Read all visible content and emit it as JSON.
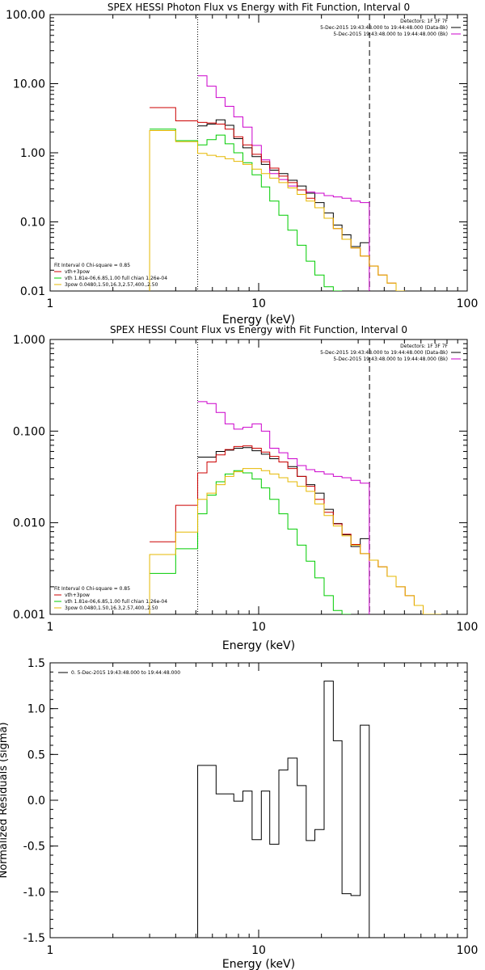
{
  "chart_data": [
    {
      "type": "line",
      "title": "SPEX HESSI Photon Flux vs Energy with Fit Function, Interval 0",
      "xlabel": "Energy (keV)",
      "ylabel": "",
      "xscale": "log",
      "yscale": "log",
      "xlim": [
        1,
        100
      ],
      "ylim": [
        0.01,
        100
      ],
      "x_ticks": [
        1,
        10,
        100
      ],
      "x_tick_labels": [
        "1",
        "10",
        "100"
      ],
      "y_ticks": [
        0.01,
        0.1,
        1,
        10,
        100
      ],
      "y_tick_labels": [
        "0.01",
        "0.10",
        "1.00",
        "10.00",
        "100.00"
      ],
      "vlines": [
        {
          "x": 5.1,
          "style": "dotted"
        },
        {
          "x": 34,
          "style": "dashed"
        }
      ],
      "info_lines": [
        "Detectors: 1F 3F 7F",
        "5-Dec-2015 19:43:48.000 to 19:44:48.000 (Data-Bk)",
        "5-Dec-2015 19:43:48.000 to 19:44:48.000 (Bk)"
      ],
      "info_colors": [
        "#000000",
        "#000000",
        "#cc00cc"
      ],
      "legend_lines": [
        "Fit Interval 0   Chi-square = 0.85",
        "vth+3pow",
        "vth 1.81e-06,6.85,1.00  full chian 1.26e-04",
        "3pow 0.0480,1.50,16.3,2.57,400.,2.50"
      ],
      "legend_colors": [
        "#000000",
        "#cc0000",
        "#00cc00",
        "#e6b800"
      ],
      "legend_placement": "bottom-left",
      "series": [
        {
          "key": "data",
          "color": "#000000",
          "edges": [
            5.1,
            5.65,
            6.25,
            6.9,
            7.6,
            8.4,
            9.3,
            10.3,
            11.3,
            12.5,
            13.8,
            15.3,
            16.9,
            18.6,
            20.6,
            22.8,
            25.1,
            27.7,
            30.7,
            33.9
          ],
          "values": [
            2.45,
            2.6,
            3.0,
            2.5,
            1.6,
            1.18,
            0.88,
            0.68,
            0.56,
            0.5,
            0.4,
            0.33,
            0.26,
            0.19,
            0.135,
            0.09,
            0.065,
            0.044,
            0.05
          ]
        },
        {
          "key": "background",
          "color": "#cc00cc",
          "edges": [
            5.1,
            5.65,
            6.25,
            6.9,
            7.6,
            8.4,
            9.3,
            10.3,
            11.3,
            12.5,
            13.8,
            15.3,
            16.9,
            18.6,
            20.6,
            22.8,
            25.1,
            27.7,
            30.7,
            33.9
          ],
          "values": [
            13,
            9.2,
            6.3,
            4.7,
            3.3,
            2.35,
            1.28,
            0.79,
            0.5,
            0.41,
            0.33,
            0.29,
            0.27,
            0.26,
            0.24,
            0.23,
            0.22,
            0.2,
            0.19
          ],
          "drop_to_axis": true
        },
        {
          "key": "model-total",
          "color": "#cc0000",
          "edges": [
            3,
            4,
            5.1,
            5.65,
            6.25,
            6.9,
            7.6,
            8.4,
            9.3,
            10.3,
            11.3,
            12.5,
            13.8,
            15.3,
            16.9,
            18.6,
            20.6,
            22.8,
            25.1,
            27.7,
            30.7,
            33.9,
            37.4,
            41.3,
            45.6,
            50.4
          ],
          "values": [
            4.5,
            2.9,
            2.75,
            2.7,
            2.6,
            2.2,
            1.7,
            1.3,
            0.95,
            0.74,
            0.6,
            0.46,
            0.37,
            0.29,
            0.22,
            0.16,
            0.113,
            0.08,
            0.056,
            0.042,
            0.032,
            0.023,
            0.017,
            0.013,
            0.01
          ]
        },
        {
          "key": "model-thermal",
          "color": "#00cc00",
          "edges": [
            3,
            4,
            5.1,
            5.65,
            6.25,
            6.9,
            7.6,
            8.4,
            9.3,
            10.3,
            11.3,
            12.5,
            13.8,
            15.3,
            16.9,
            18.6,
            20.6,
            22.8,
            25.1
          ],
          "values": [
            2.2,
            1.5,
            1.3,
            1.55,
            1.8,
            1.35,
            1.0,
            0.72,
            0.48,
            0.32,
            0.2,
            0.125,
            0.076,
            0.046,
            0.027,
            0.017,
            0.0115,
            0.01
          ]
        },
        {
          "key": "model-powerlaw",
          "color": "#e6b800",
          "edges": [
            3,
            4,
            5.1,
            5.65,
            6.25,
            6.9,
            7.6,
            8.4,
            9.3,
            10.3,
            11.3,
            12.5,
            13.8,
            15.3,
            16.9,
            18.6,
            20.6,
            22.8,
            25.1,
            27.7,
            30.7,
            33.9,
            37.4,
            41.3,
            45.6,
            50.4
          ],
          "values": [
            2.1,
            1.45,
            0.98,
            0.92,
            0.88,
            0.82,
            0.75,
            0.68,
            0.58,
            0.5,
            0.43,
            0.37,
            0.31,
            0.25,
            0.2,
            0.16,
            0.113,
            0.08,
            0.056,
            0.042,
            0.032,
            0.023,
            0.017,
            0.013,
            0.01
          ],
          "drop_to_axis_start": true
        }
      ]
    },
    {
      "type": "line",
      "title": "SPEX HESSI Count Flux vs Energy with Fit Function, Interval 0",
      "xlabel": "Energy (keV)",
      "ylabel": "",
      "xscale": "log",
      "yscale": "log",
      "xlim": [
        1,
        100
      ],
      "ylim": [
        0.001,
        1
      ],
      "x_ticks": [
        1,
        10,
        100
      ],
      "x_tick_labels": [
        "1",
        "10",
        "100"
      ],
      "y_ticks": [
        0.001,
        0.01,
        0.1,
        1
      ],
      "y_tick_labels": [
        "0.001",
        "0.010",
        "0.100",
        "1.000"
      ],
      "vlines": [
        {
          "x": 5.1,
          "style": "dotted"
        },
        {
          "x": 34,
          "style": "dashed"
        }
      ],
      "info_lines": [
        "Detectors: 1F 3F 7F",
        "5-Dec-2015 19:43:48.000 to 19:44:48.000 (Data-Bk)",
        "5-Dec-2015 19:43:48.000 to 19:44:48.000 (Bk)"
      ],
      "info_colors": [
        "#000000",
        "#000000",
        "#cc00cc"
      ],
      "legend_lines": [
        "Fit Interval 0   Chi-square = 0.85",
        "vth+3pow",
        "vth 1.81e-06,6.85,1.00  full chian 1.26e-04",
        "3pow 0.0480,1.50,16.3,2.57,400.,2.50"
      ],
      "legend_colors": [
        "#000000",
        "#cc0000",
        "#00cc00",
        "#e6b800"
      ],
      "legend_placement": "bottom-left",
      "series": [
        {
          "key": "data",
          "color": "#000000",
          "edges": [
            5.1,
            5.65,
            6.25,
            6.9,
            7.6,
            8.4,
            9.3,
            10.3,
            11.3,
            12.5,
            13.8,
            15.3,
            16.9,
            18.6,
            20.6,
            22.8,
            25.1,
            27.7,
            30.7,
            33.9
          ],
          "values": [
            0.052,
            0.052,
            0.06,
            0.062,
            0.065,
            0.066,
            0.061,
            0.056,
            0.05,
            0.046,
            0.041,
            0.032,
            0.026,
            0.021,
            0.014,
            0.0098,
            0.0074,
            0.0055,
            0.0067
          ]
        },
        {
          "key": "background",
          "color": "#cc00cc",
          "edges": [
            5.1,
            5.65,
            6.25,
            6.9,
            7.6,
            8.4,
            9.3,
            10.3,
            11.3,
            12.5,
            13.8,
            15.3,
            16.9,
            18.6,
            20.6,
            22.8,
            25.1,
            27.7,
            30.7,
            33.9
          ],
          "values": [
            0.21,
            0.2,
            0.16,
            0.12,
            0.105,
            0.11,
            0.12,
            0.1,
            0.065,
            0.058,
            0.05,
            0.042,
            0.038,
            0.036,
            0.034,
            0.032,
            0.031,
            0.029,
            0.027
          ],
          "drop_to_axis": true
        },
        {
          "key": "model-total",
          "color": "#cc0000",
          "edges": [
            3,
            4,
            5.1,
            5.65,
            6.25,
            6.9,
            7.6,
            8.4,
            9.3,
            10.3,
            11.3,
            12.5,
            13.8,
            15.3,
            16.9,
            18.6,
            20.6,
            22.8,
            25.1,
            27.7,
            30.7,
            33.9,
            37.4,
            41.3,
            45.6,
            50.4,
            55.7,
            61.5,
            67.9,
            75
          ],
          "values": [
            0.0062,
            0.0155,
            0.035,
            0.046,
            0.055,
            0.063,
            0.068,
            0.069,
            0.065,
            0.059,
            0.053,
            0.046,
            0.039,
            0.032,
            0.025,
            0.018,
            0.013,
            0.0097,
            0.0075,
            0.0058,
            0.0046,
            0.0039,
            0.0033,
            0.0026,
            0.002,
            0.0016,
            0.00125,
            0.001,
            0.0009
          ]
        },
        {
          "key": "model-thermal",
          "color": "#00cc00",
          "edges": [
            3,
            4,
            5.1,
            5.65,
            6.25,
            6.9,
            7.6,
            8.4,
            9.3,
            10.3,
            11.3,
            12.5,
            13.8,
            15.3,
            16.9,
            18.6,
            20.6,
            22.8,
            25.1,
            27.7
          ],
          "values": [
            0.0028,
            0.0052,
            0.0125,
            0.02,
            0.028,
            0.034,
            0.037,
            0.035,
            0.03,
            0.024,
            0.018,
            0.0125,
            0.0085,
            0.0057,
            0.0038,
            0.0025,
            0.0016,
            0.0011,
            0.0009
          ]
        },
        {
          "key": "model-powerlaw",
          "color": "#e6b800",
          "edges": [
            3,
            4,
            5.1,
            5.65,
            6.25,
            6.9,
            7.6,
            8.4,
            9.3,
            10.3,
            11.3,
            12.5,
            13.8,
            15.3,
            16.9,
            18.6,
            20.6,
            22.8,
            25.1,
            27.7,
            30.7,
            33.9,
            37.4,
            41.3,
            45.6,
            50.4,
            55.7,
            61.5,
            67.9,
            75
          ],
          "values": [
            0.0045,
            0.0079,
            0.018,
            0.021,
            0.026,
            0.032,
            0.036,
            0.039,
            0.039,
            0.037,
            0.034,
            0.031,
            0.028,
            0.025,
            0.022,
            0.016,
            0.012,
            0.0092,
            0.0072,
            0.0057,
            0.0046,
            0.0039,
            0.0033,
            0.0026,
            0.002,
            0.0016,
            0.00125,
            0.001,
            0.0009
          ],
          "drop_to_axis_start": true
        }
      ]
    },
    {
      "type": "line",
      "title": "",
      "xlabel": "Energy (keV)",
      "ylabel": "Normalized Residuals (sigma)",
      "xscale": "log",
      "yscale": "linear",
      "xlim": [
        1,
        100
      ],
      "ylim": [
        -1.5,
        1.5
      ],
      "x_ticks": [
        1,
        10,
        100
      ],
      "x_tick_labels": [
        "1",
        "10",
        "100"
      ],
      "y_ticks": [
        -1.5,
        -1.0,
        -0.5,
        0.0,
        0.5,
        1.0,
        1.5
      ],
      "y_tick_labels": [
        "-1.5",
        "-1.0",
        "-0.5",
        "0.0",
        "0.5",
        "1.0",
        "1.5"
      ],
      "vlines": [],
      "info_lines": [],
      "info_colors": [],
      "legend_lines": [
        "0.  5-Dec-2015 19:43:48.000 to 19:44:48.000"
      ],
      "legend_colors": [
        "#000000"
      ],
      "legend_placement": "top-left",
      "series": [
        {
          "key": "residuals",
          "color": "#000000",
          "edges": [
            5.1,
            6.25,
            7.6,
            8.4,
            9.3,
            10.3,
            11.3,
            12.5,
            13.8,
            15.3,
            16.9,
            18.6,
            20.6,
            22.8,
            25.1,
            27.7,
            30.7,
            33.9
          ],
          "values": [
            0.38,
            0.07,
            -0.01,
            0.1,
            -0.43,
            0.1,
            -0.48,
            0.33,
            0.46,
            0.16,
            -0.44,
            -0.32,
            1.3,
            0.65,
            -1.02,
            -1.04,
            0.82
          ],
          "drop_to_axis": true,
          "drop_to_axis_start": true
        }
      ]
    }
  ]
}
